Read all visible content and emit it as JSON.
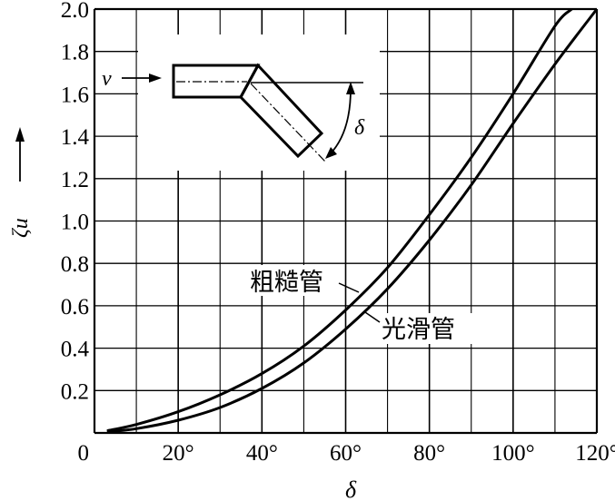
{
  "chart_data": {
    "type": "line",
    "xlabel": "δ",
    "ylabel": "ζu",
    "xlim": [
      0,
      120
    ],
    "ylim": [
      0,
      2.0
    ],
    "x_ticks": [
      0,
      20,
      40,
      60,
      80,
      100,
      120
    ],
    "x_tick_labels": [
      "0",
      "20°",
      "40°",
      "60°",
      "80°",
      "100°",
      "120°"
    ],
    "y_ticks": [
      0.2,
      0.4,
      0.6,
      0.8,
      1.0,
      1.2,
      1.4,
      1.6,
      1.8,
      2.0
    ],
    "y_tick_labels": [
      "0.2",
      "0.4",
      "0.6",
      "0.8",
      "1.0",
      "1.2",
      "1.4",
      "1.6",
      "1.8",
      "2.0"
    ],
    "grid": true,
    "x_grid_step": 10,
    "y_grid_step": 0.2,
    "series": [
      {
        "name": "粗糙管",
        "x": [
          3,
          10,
          20,
          30,
          40,
          50,
          60,
          70,
          80,
          90,
          100,
          110,
          114
        ],
        "y": [
          0.01,
          0.04,
          0.1,
          0.18,
          0.28,
          0.41,
          0.58,
          0.78,
          1.03,
          1.3,
          1.6,
          1.92,
          2.0
        ]
      },
      {
        "name": "光滑管",
        "x": [
          3,
          10,
          20,
          30,
          40,
          50,
          60,
          70,
          80,
          90,
          100,
          110,
          120
        ],
        "y": [
          0.005,
          0.02,
          0.06,
          0.12,
          0.21,
          0.33,
          0.49,
          0.68,
          0.91,
          1.17,
          1.46,
          1.74,
          2.0
        ]
      }
    ],
    "annotations": {
      "rough_label": "粗糙管",
      "smooth_label": "光滑管",
      "inset_velocity": "v",
      "inset_angle": "δ"
    }
  }
}
